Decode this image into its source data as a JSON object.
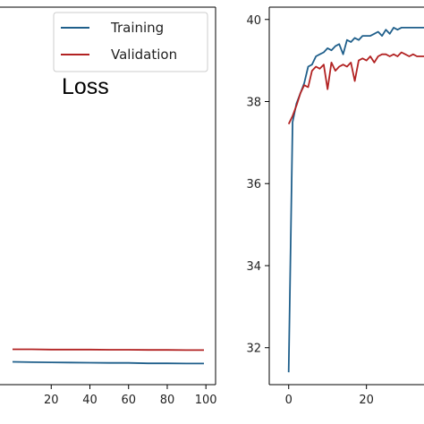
{
  "colors": {
    "training": "#1f5f8b",
    "validation": "#b22222"
  },
  "chart_data": [
    {
      "type": "line",
      "title": "",
      "annotation": "Loss",
      "xlabel": "",
      "ylabel": "",
      "xlim": [
        -25,
        105
      ],
      "ylim": [
        0,
        1
      ],
      "y_visible_in_crop": [
        0.0,
        1.0
      ],
      "xticks": [
        20,
        40,
        60,
        80,
        100
      ],
      "xtick_labels": [
        "20",
        "40",
        "60",
        "80",
        "100"
      ],
      "legend": {
        "position": "top-right",
        "entries": [
          "Training",
          "Validation"
        ]
      },
      "series": [
        {
          "name": "Training",
          "x": [
            0,
            10,
            20,
            30,
            40,
            50,
            60,
            70,
            80,
            90,
            99
          ],
          "y": [
            0.0605,
            0.0595,
            0.059,
            0.0585,
            0.058,
            0.0575,
            0.0575,
            0.0565,
            0.0565,
            0.056,
            0.056
          ]
        },
        {
          "name": "Validation",
          "x": [
            0,
            10,
            20,
            30,
            40,
            50,
            60,
            70,
            80,
            90,
            99
          ],
          "y": [
            0.0935,
            0.0935,
            0.093,
            0.093,
            0.093,
            0.0925,
            0.0925,
            0.092,
            0.092,
            0.0915,
            0.0915
          ]
        }
      ]
    },
    {
      "type": "line",
      "title": "",
      "xlabel": "",
      "ylabel": "",
      "xlim": [
        -5,
        34.8
      ],
      "ylim": [
        31.1,
        40.3
      ],
      "xticks": [
        0,
        20
      ],
      "xtick_labels": [
        "0",
        "20"
      ],
      "yticks": [
        32,
        34,
        36,
        38,
        40
      ],
      "ytick_labels": [
        "32",
        "34",
        "36",
        "38",
        "40"
      ],
      "series": [
        {
          "name": "Training",
          "x": [
            0,
            1,
            2,
            3,
            4,
            5,
            6,
            7,
            8,
            9,
            10,
            11,
            12,
            13,
            14,
            15,
            16,
            17,
            18,
            19,
            20,
            21,
            22,
            23,
            24,
            25,
            26,
            27,
            28,
            29,
            30,
            31,
            32,
            33,
            34,
            35
          ],
          "y": [
            31.4,
            37.5,
            37.95,
            38.2,
            38.45,
            38.85,
            38.9,
            39.1,
            39.15,
            39.2,
            39.3,
            39.25,
            39.35,
            39.4,
            39.15,
            39.5,
            39.45,
            39.55,
            39.5,
            39.6,
            39.6,
            39.6,
            39.65,
            39.7,
            39.6,
            39.75,
            39.65,
            39.8,
            39.75,
            39.8,
            39.8,
            39.8,
            39.8,
            39.8,
            39.8,
            39.8
          ]
        },
        {
          "name": "Validation",
          "x": [
            0,
            1,
            2,
            3,
            4,
            5,
            6,
            7,
            8,
            9,
            10,
            11,
            12,
            13,
            14,
            15,
            16,
            17,
            18,
            19,
            20,
            21,
            22,
            23,
            24,
            25,
            26,
            27,
            28,
            29,
            30,
            31,
            32,
            33,
            34,
            35
          ],
          "y": [
            37.45,
            37.65,
            37.9,
            38.2,
            38.4,
            38.35,
            38.75,
            38.85,
            38.8,
            38.9,
            38.3,
            38.95,
            38.75,
            38.85,
            38.9,
            38.85,
            38.95,
            38.5,
            39.0,
            39.05,
            39.0,
            39.1,
            38.95,
            39.1,
            39.15,
            39.15,
            39.1,
            39.15,
            39.1,
            39.2,
            39.15,
            39.1,
            39.15,
            39.1,
            39.1,
            39.1
          ]
        }
      ]
    }
  ]
}
